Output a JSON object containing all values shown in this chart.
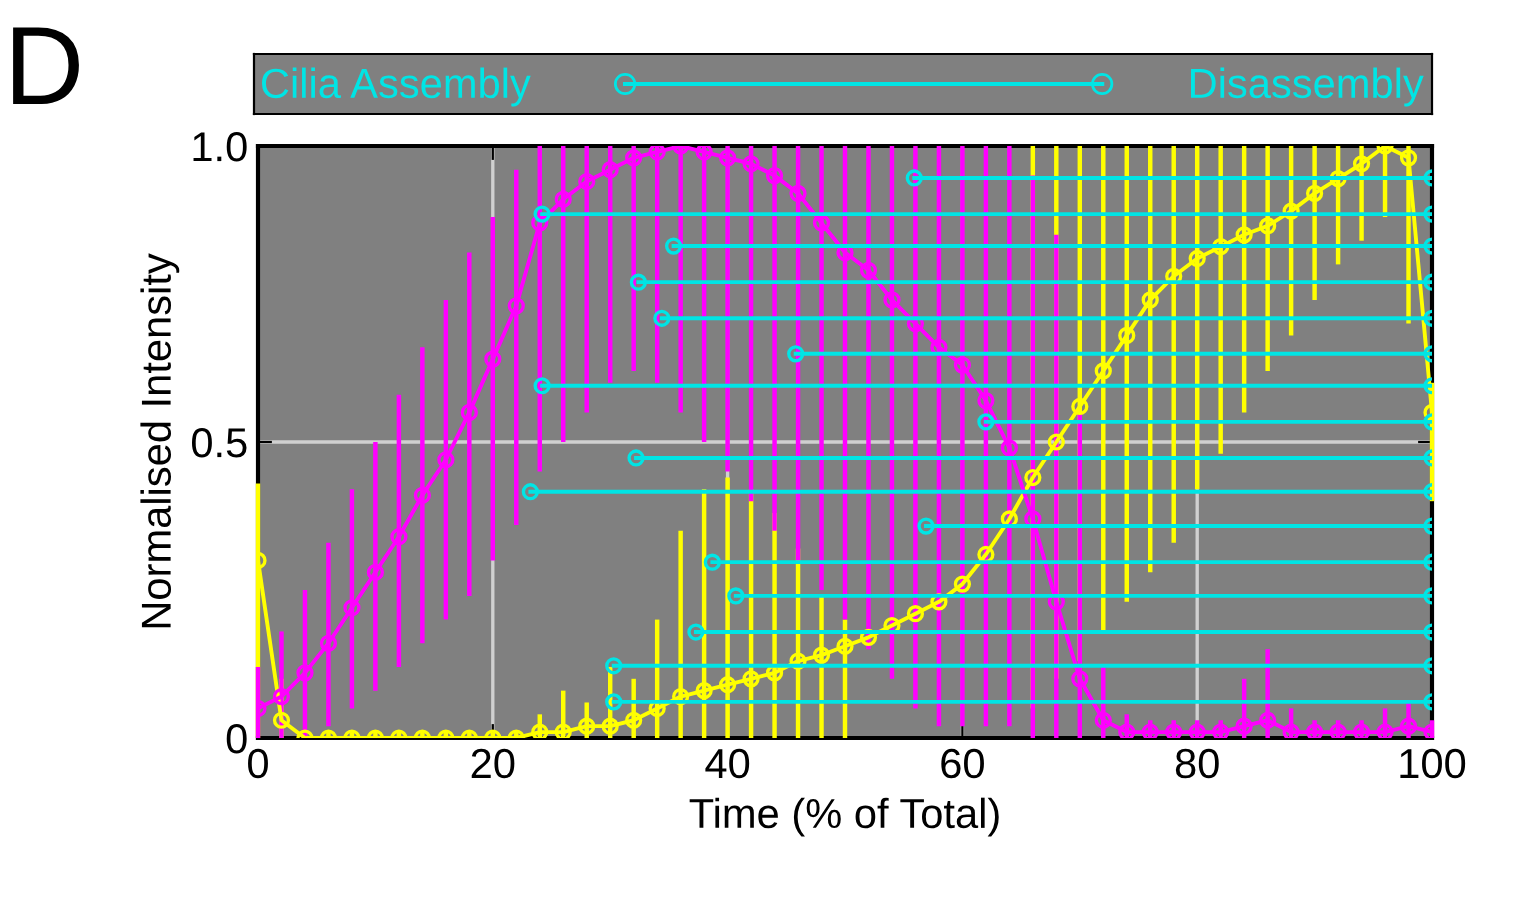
{
  "chart_data": {
    "type": "line",
    "xlabel": "Time (% of Total)",
    "ylabel": "Normalised Intensity",
    "annotations": [
      "D",
      "Cilia Assembly",
      "Disassembly"
    ],
    "xlim": [
      0,
      100
    ],
    "ylim": [
      0,
      1
    ],
    "xticks": [
      0,
      20,
      40,
      60,
      80,
      100
    ],
    "yticks": [
      0,
      {
        "value": 0.5,
        "label": "0.5"
      },
      {
        "value": 1,
        "label": "1.0"
      }
    ],
    "grid": true,
    "legend": false,
    "marker": "circle",
    "line_style": "solid",
    "series": [
      {
        "color": "#ffff00",
        "x": [
          0,
          2,
          4,
          6,
          8,
          10,
          12,
          14,
          16,
          18,
          20,
          22,
          24,
          26,
          28,
          30,
          32,
          34,
          36,
          38,
          40,
          42,
          44,
          46,
          48,
          50,
          52,
          54,
          56,
          58,
          60,
          62,
          64,
          66,
          68,
          70,
          72,
          74,
          76,
          78,
          80,
          82,
          84,
          86,
          88,
          90,
          92,
          94,
          96,
          98,
          100
        ],
        "values": [
          0.3,
          0.03,
          0.0,
          0.0,
          0.0,
          0.0,
          0.0,
          0.0,
          0.0,
          0.0,
          0.0,
          0.0,
          0.01,
          0.01,
          0.02,
          0.02,
          0.03,
          0.05,
          0.07,
          0.08,
          0.09,
          0.1,
          0.11,
          0.13,
          0.14,
          0.155,
          0.17,
          0.19,
          0.21,
          0.23,
          0.26,
          0.31,
          0.37,
          0.44,
          0.5,
          0.56,
          0.62,
          0.68,
          0.74,
          0.78,
          0.81,
          0.83,
          0.85,
          0.865,
          0.89,
          0.92,
          0.945,
          0.97,
          1.0,
          0.98,
          0.55
        ],
        "errors": [
          [
            0,
            0.43
          ],
          [
            0,
            0.1
          ],
          [
            0,
            0.01
          ],
          [
            0,
            0.01
          ],
          [
            0,
            0.01
          ],
          [
            0,
            0.01
          ],
          [
            0,
            0.01
          ],
          [
            0,
            0.01
          ],
          [
            0,
            0.01
          ],
          [
            0,
            0.01
          ],
          [
            0,
            0.01
          ],
          [
            0,
            0.01
          ],
          [
            0,
            0.04
          ],
          [
            0,
            0.08
          ],
          [
            0,
            0.06
          ],
          [
            0,
            0.12
          ],
          [
            0,
            0.1
          ],
          [
            0,
            0.2
          ],
          [
            0,
            0.35
          ],
          [
            0,
            0.42
          ],
          [
            0,
            0.44
          ],
          [
            0,
            0.42
          ],
          [
            0,
            0.38
          ],
          [
            0,
            0.32
          ],
          [
            0,
            0.24
          ],
          [
            0,
            0.2
          ],
          null,
          null,
          null,
          null,
          null,
          null,
          null,
          [
            0.05,
            1
          ],
          [
            0.1,
            1
          ],
          [
            0.13,
            1
          ],
          [
            0.18,
            1
          ],
          [
            0.23,
            1
          ],
          [
            0.28,
            1
          ],
          [
            0.33,
            1
          ],
          [
            0.42,
            1
          ],
          [
            0.48,
            1
          ],
          [
            0.55,
            1
          ],
          [
            0.62,
            1
          ],
          [
            0.68,
            1
          ],
          [
            0.74,
            1
          ],
          [
            0.8,
            1
          ],
          [
            0.84,
            1
          ],
          [
            0.88,
            1
          ],
          [
            0.7,
            1
          ],
          [
            0.4,
            0.6
          ]
        ]
      },
      {
        "color": "#ff00ff",
        "x": [
          0,
          2,
          4,
          6,
          8,
          10,
          12,
          14,
          16,
          18,
          20,
          22,
          24,
          26,
          28,
          30,
          32,
          34,
          36,
          38,
          40,
          42,
          44,
          46,
          48,
          50,
          52,
          54,
          56,
          58,
          60,
          62,
          64,
          66,
          68,
          70,
          72,
          74,
          76,
          78,
          80,
          82,
          84,
          86,
          88,
          90,
          92,
          94,
          96,
          98,
          100
        ],
        "values": [
          0.05,
          0.07,
          0.11,
          0.16,
          0.22,
          0.28,
          0.34,
          0.41,
          0.47,
          0.55,
          0.64,
          0.73,
          0.87,
          0.91,
          0.94,
          0.96,
          0.98,
          0.99,
          1.0,
          0.99,
          0.98,
          0.97,
          0.95,
          0.92,
          0.87,
          0.82,
          0.79,
          0.74,
          0.7,
          0.66,
          0.63,
          0.57,
          0.49,
          0.37,
          0.23,
          0.1,
          0.03,
          0.01,
          0.01,
          0.01,
          0.01,
          0.01,
          0.02,
          0.03,
          0.01,
          0.01,
          0.01,
          0.01,
          0.01,
          0.02,
          0.01
        ],
        "errors": [
          [
            0,
            0.12
          ],
          [
            0,
            0.18
          ],
          [
            0,
            0.25
          ],
          [
            0.02,
            0.33
          ],
          [
            0.05,
            0.42
          ],
          [
            0.08,
            0.5
          ],
          [
            0.12,
            0.58
          ],
          [
            0.16,
            0.66
          ],
          [
            0.2,
            0.74
          ],
          [
            0.24,
            0.82
          ],
          [
            0.3,
            0.88
          ],
          [
            0.36,
            0.96
          ],
          [
            0.45,
            1
          ],
          [
            0.5,
            1
          ],
          [
            0.55,
            1
          ],
          [
            0.6,
            1
          ],
          [
            0.62,
            1
          ],
          [
            0.6,
            1
          ],
          [
            0.55,
            1
          ],
          [
            0.5,
            1
          ],
          [
            0.45,
            1
          ],
          [
            0.4,
            1
          ],
          [
            0.35,
            1
          ],
          [
            0.3,
            1
          ],
          [
            0.25,
            1
          ],
          [
            0.2,
            1
          ],
          [
            0.15,
            1
          ],
          [
            0.1,
            1
          ],
          [
            0.05,
            1
          ],
          [
            0.02,
            1
          ],
          [
            0.02,
            1
          ],
          [
            0.02,
            1
          ],
          [
            0.02,
            1
          ],
          [
            0,
            0.95
          ],
          [
            0,
            0.85
          ],
          [
            0,
            0.55
          ],
          [
            0,
            0.12
          ],
          [
            0,
            0.04
          ],
          [
            0,
            0.03
          ],
          [
            0,
            0.03
          ],
          [
            0,
            0.03
          ],
          [
            0,
            0.03
          ],
          [
            0,
            0.1
          ],
          [
            0,
            0.15
          ],
          [
            0,
            0.05
          ],
          [
            0,
            0.03
          ],
          [
            0,
            0.03
          ],
          [
            0,
            0.03
          ],
          [
            0,
            0.05
          ],
          [
            0,
            0.06
          ],
          [
            0,
            0.03
          ]
        ]
      },
      {
        "color": "#00e5e5",
        "x": [
          55.9,
          100
        ],
        "values": [
          0.946,
          0.946
        ]
      },
      {
        "color": "#00e5e5",
        "x": [
          24.2,
          100
        ],
        "values": [
          0.885,
          0.885
        ]
      },
      {
        "color": "#00e5e5",
        "x": [
          35.4,
          100
        ],
        "values": [
          0.831,
          0.831
        ]
      },
      {
        "color": "#00e5e5",
        "x": [
          32.4,
          100
        ],
        "values": [
          0.77,
          0.77
        ]
      },
      {
        "color": "#00e5e5",
        "x": [
          34.4,
          100
        ],
        "values": [
          0.709,
          0.709
        ]
      },
      {
        "color": "#00e5e5",
        "x": [
          45.8,
          100
        ],
        "values": [
          0.649,
          0.649
        ]
      },
      {
        "color": "#00e5e5",
        "x": [
          24.2,
          100
        ],
        "values": [
          0.595,
          0.595
        ]
      },
      {
        "color": "#00e5e5",
        "x": [
          62.0,
          100
        ],
        "values": [
          0.534,
          0.534
        ]
      },
      {
        "color": "#00e5e5",
        "x": [
          32.2,
          100
        ],
        "values": [
          0.473,
          0.473
        ]
      },
      {
        "color": "#00e5e5",
        "x": [
          23.2,
          100
        ],
        "values": [
          0.416,
          0.416
        ]
      },
      {
        "color": "#00e5e5",
        "x": [
          56.9,
          100
        ],
        "values": [
          0.358,
          0.358
        ]
      },
      {
        "color": "#00e5e5",
        "x": [
          38.7,
          100
        ],
        "values": [
          0.297,
          0.297
        ]
      },
      {
        "color": "#00e5e5",
        "x": [
          40.7,
          100
        ],
        "values": [
          0.24,
          0.24
        ]
      },
      {
        "color": "#00e5e5",
        "x": [
          37.3,
          100
        ],
        "values": [
          0.179,
          0.179
        ]
      },
      {
        "color": "#00e5e5",
        "x": [
          30.3,
          100
        ],
        "values": [
          0.122,
          0.122
        ]
      },
      {
        "color": "#00e5e5",
        "x": [
          30.3,
          100
        ],
        "values": [
          0.061,
          0.061
        ]
      }
    ]
  }
}
